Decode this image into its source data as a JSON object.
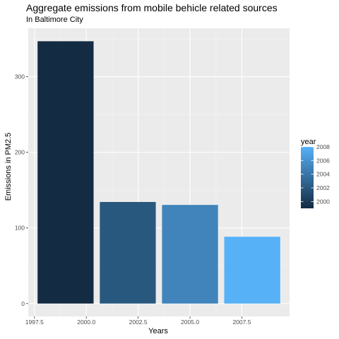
{
  "chart_data": {
    "type": "bar",
    "title": "Aggregate emissions from mobile behicle related sources",
    "subtitle": "In Baltimore City",
    "xlabel": "Years",
    "ylabel": "Emissions in PM2.5",
    "x": [
      1999,
      2002,
      2005,
      2008
    ],
    "values": [
      346.8,
      134.3,
      130.4,
      88.3
    ],
    "xlim": [
      1997.2,
      2009.8
    ],
    "ylim": [
      -17,
      364
    ],
    "x_ticks": [
      1997.5,
      2000.0,
      2002.5,
      2005.0,
      2007.5
    ],
    "x_tick_labels": [
      "1997.5",
      "2000.0",
      "2002.5",
      "2005.0",
      "2007.5"
    ],
    "y_ticks": [
      0,
      100,
      200,
      300
    ],
    "y_tick_labels": [
      "0",
      "100",
      "200",
      "300"
    ],
    "grid": true,
    "legend": {
      "title": "year",
      "placement": "right",
      "type": "colorbar",
      "range": [
        1999,
        2008
      ],
      "ticks": [
        2000,
        2002,
        2004,
        2006,
        2008
      ],
      "tick_labels": [
        "2000",
        "2002",
        "2004",
        "2006",
        "2008"
      ],
      "color_low": "#132B43",
      "color_high": "#56B1F7"
    },
    "colors": {
      "panel": "#EBEBEB",
      "grid_major": "#FFFFFF",
      "grid_minor": "#F5F5F5",
      "text": "#000000",
      "tick_text": "#4D4D4D"
    }
  }
}
